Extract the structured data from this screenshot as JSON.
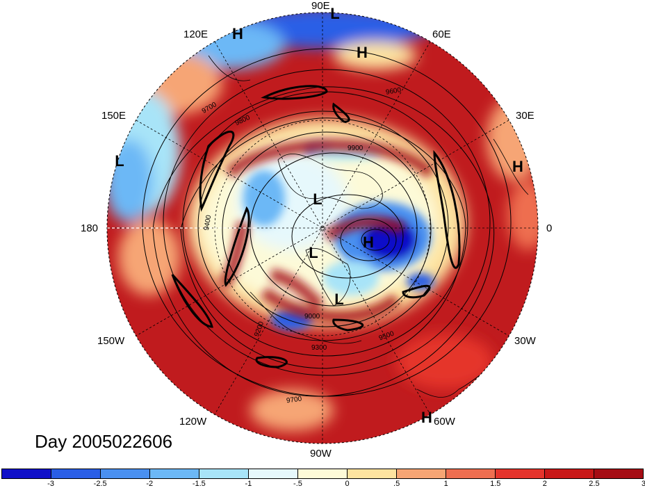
{
  "map": {
    "longitude_labels": [
      {
        "id": "lon-90e",
        "text": "90E"
      },
      {
        "id": "lon-60e",
        "text": "60E"
      },
      {
        "id": "lon-120e",
        "text": "120E"
      },
      {
        "id": "lon-150e",
        "text": "150E"
      },
      {
        "id": "lon-30e",
        "text": "30E"
      },
      {
        "id": "lon-180",
        "text": "180"
      },
      {
        "id": "lon-0",
        "text": "0"
      },
      {
        "id": "lon-150w",
        "text": "150W"
      },
      {
        "id": "lon-30w",
        "text": "30W"
      },
      {
        "id": "lon-120w",
        "text": "120W"
      },
      {
        "id": "lon-60w",
        "text": "60W"
      },
      {
        "id": "lon-90w",
        "text": "90W"
      }
    ],
    "pressure_markers": [
      {
        "id": "l-top",
        "text": "L"
      },
      {
        "id": "h-topleft",
        "text": "H"
      },
      {
        "id": "h-top",
        "text": "H"
      },
      {
        "id": "l-left",
        "text": "L"
      },
      {
        "id": "h-right",
        "text": "H"
      },
      {
        "id": "l-center",
        "text": "L"
      },
      {
        "id": "h-center",
        "text": "H"
      },
      {
        "id": "l-mid",
        "text": "L"
      },
      {
        "id": "l-lower",
        "text": "L"
      },
      {
        "id": "h-bottom",
        "text": "H"
      }
    ],
    "contour_labels": [
      "9600",
      "9700",
      "9800",
      "9900",
      "9400",
      "9500",
      "9200",
      "9000",
      "9300",
      "9700"
    ],
    "day_label": "Day 2005022606"
  },
  "colorbar": {
    "colors": [
      "#1010c8",
      "#2a5ee6",
      "#4a90f0",
      "#6cb8f6",
      "#a8e4f8",
      "#e6f8fc",
      "#fdfad8",
      "#fde3a0",
      "#f6a574",
      "#ee6e50",
      "#e5342c",
      "#c81818",
      "#a50c14"
    ],
    "ticks": [
      "-3",
      "-2.5",
      "-2",
      "-1.5",
      "-1",
      "-.5",
      "0",
      ".5",
      "1",
      "1.5",
      "2",
      "2.5",
      "3"
    ]
  }
}
